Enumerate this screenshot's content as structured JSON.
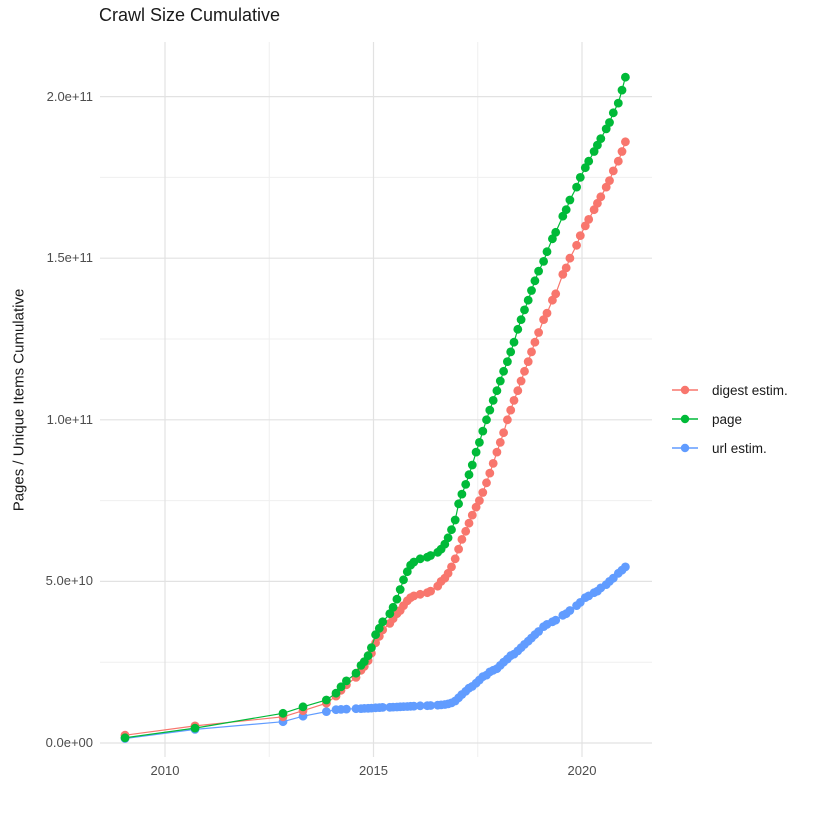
{
  "title": "Crawl Size Cumulative",
  "chart_data": {
    "type": "line",
    "title": "Crawl Size Cumulative",
    "xlabel": "",
    "ylabel": "Pages / Unique Items Cumulative",
    "legend_position": "right",
    "grid": "major+minor",
    "background_color": "#ffffff",
    "major_grid_color": "#e2e2e2",
    "minor_grid_color": "#efefef",
    "axis_text_color": "#4d4d4d",
    "title_color": "#1a1a1a",
    "x_unit": "year",
    "y_unit_note": "values stored in billions (1e9) of pages / unique items",
    "xlim": [
      2008.45,
      2021.68
    ],
    "ylim_billions": [
      -4,
      217
    ],
    "x_ticks": [
      {
        "value": 2010,
        "label": "2010"
      },
      {
        "value": 2015,
        "label": "2015"
      },
      {
        "value": 2020,
        "label": "2020"
      }
    ],
    "x_minor_ticks": [
      2012.5,
      2017.5
    ],
    "y_ticks": [
      {
        "value_billions": 0,
        "label": "0.0e+00"
      },
      {
        "value_billions": 50,
        "label": "5.0e+10"
      },
      {
        "value_billions": 100,
        "label": "1.0e+11"
      },
      {
        "value_billions": 150,
        "label": "1.5e+11"
      },
      {
        "value_billions": 200,
        "label": "2.0e+11"
      }
    ],
    "y_minor_ticks_billions": [
      25,
      75,
      125,
      175
    ],
    "x_years": [
      2009.04,
      2010.72,
      2012.83,
      2013.31,
      2013.87,
      2014.1,
      2014.22,
      2014.35,
      2014.58,
      2014.7,
      2014.78,
      2014.87,
      2014.95,
      2015.05,
      2015.14,
      2015.22,
      2015.39,
      2015.47,
      2015.56,
      2015.64,
      2015.72,
      2015.81,
      2015.89,
      2015.97,
      2016.12,
      2016.29,
      2016.37,
      2016.54,
      2016.62,
      2016.71,
      2016.79,
      2016.87,
      2016.96,
      2017.04,
      2017.12,
      2017.21,
      2017.29,
      2017.37,
      2017.46,
      2017.54,
      2017.62,
      2017.71,
      2017.79,
      2017.87,
      2017.96,
      2018.04,
      2018.12,
      2018.21,
      2018.29,
      2018.37,
      2018.46,
      2018.54,
      2018.62,
      2018.71,
      2018.79,
      2018.87,
      2018.96,
      2019.08,
      2019.16,
      2019.29,
      2019.37,
      2019.54,
      2019.62,
      2019.71,
      2019.87,
      2019.96,
      2020.08,
      2020.16,
      2020.29,
      2020.37,
      2020.45,
      2020.58,
      2020.66,
      2020.75,
      2020.87,
      2020.96,
      2021.04
    ],
    "series": [
      {
        "name": "digest estim.",
        "color": "#F8766D",
        "values_billions": [
          2.4,
          5.3,
          8.1,
          10,
          12.3,
          14.5,
          16.3,
          18,
          20.3,
          22.5,
          23.7,
          25.5,
          27.8,
          31,
          33,
          35,
          37,
          38.5,
          40,
          41,
          42.5,
          44,
          45,
          45.5,
          46,
          46.5,
          47,
          48.5,
          50,
          51,
          52.5,
          54.5,
          57,
          60,
          63,
          65.5,
          68,
          70.5,
          73,
          75,
          77.5,
          80.5,
          83.5,
          86.5,
          90,
          93,
          96,
          100,
          103,
          106,
          109,
          112,
          115,
          118,
          121,
          124,
          127,
          131,
          133,
          137,
          139,
          145,
          147,
          150,
          154,
          157,
          160,
          162,
          165,
          167,
          169,
          172,
          174,
          177,
          180,
          183,
          186
        ]
      },
      {
        "name": "page",
        "color": "#00BA38",
        "values_billions": [
          1.6,
          4.6,
          9.2,
          11.2,
          13.3,
          15.4,
          17.4,
          19.2,
          21.6,
          24,
          25.2,
          27,
          29.5,
          33.5,
          35.5,
          37.5,
          40,
          42,
          44.5,
          47.5,
          50.5,
          53,
          55,
          56,
          57,
          57.5,
          58,
          59,
          60,
          61.5,
          63.5,
          66,
          69,
          74,
          77,
          80,
          83,
          86,
          90,
          93,
          96.5,
          100,
          103,
          106,
          109,
          112,
          115,
          118,
          121,
          124,
          128,
          131,
          134,
          137,
          140,
          143,
          146,
          149,
          152,
          156,
          158,
          163,
          165,
          168,
          172,
          175,
          178,
          180,
          183,
          185,
          187,
          190,
          192,
          195,
          198,
          202,
          206
        ]
      },
      {
        "name": "url estim.",
        "color": "#619CFF",
        "values_billions": [
          1.4,
          4.2,
          6.6,
          8.3,
          9.7,
          10.3,
          10.4,
          10.5,
          10.6,
          10.65,
          10.7,
          10.75,
          10.8,
          10.9,
          10.95,
          11,
          11.05,
          11.1,
          11.15,
          11.2,
          11.25,
          11.3,
          11.35,
          11.4,
          11.5,
          11.55,
          11.6,
          11.7,
          11.8,
          11.9,
          12.1,
          12.4,
          13,
          14,
          15,
          16,
          17,
          17.5,
          18.5,
          19.5,
          20.5,
          21,
          22,
          22.5,
          23,
          24,
          25,
          26,
          27,
          27.5,
          28.5,
          29.5,
          30.5,
          31.5,
          32.5,
          33.5,
          34.5,
          36,
          36.7,
          37.5,
          38,
          39.5,
          40,
          41,
          42.5,
          43.5,
          45,
          45.5,
          46.5,
          47,
          48,
          49,
          50,
          51,
          52.5,
          53.5,
          54.5
        ]
      }
    ]
  }
}
